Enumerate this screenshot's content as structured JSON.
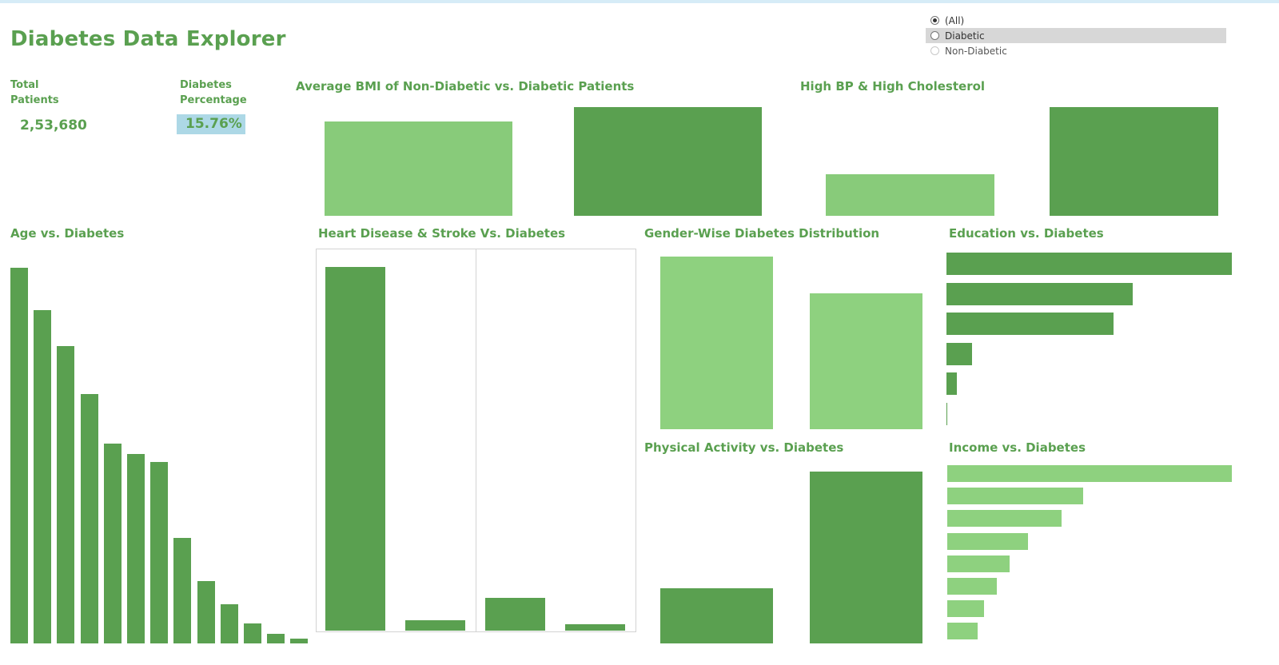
{
  "dashboard": {
    "title": "Diabetes Data Explorer",
    "kpis": {
      "total_patients_label_1": "Total",
      "total_patients_label_2": "Patients",
      "total_patients_value": "2,53,680",
      "diabetes_pct_label_1": "Diabetes",
      "diabetes_pct_label_2": "Percentage",
      "diabetes_pct_value": "15.76%"
    },
    "filter": {
      "options": [
        {
          "label": "(All)",
          "checked": true
        },
        {
          "label": "Diabetic",
          "checked": false
        },
        {
          "label": "Non-Diabetic",
          "checked": false
        }
      ]
    },
    "colors": {
      "dark_green": "#5aa050",
      "light_green": "#88cb7a",
      "highlight": "#add8e6",
      "frame": "#d3d3d3"
    }
  },
  "chart_data": [
    {
      "name": "bmi",
      "type": "bar",
      "title": "Average BMI of Non-Diabetic vs. Diabetic Patients",
      "values": [
        27.8,
        31.9
      ],
      "colors": [
        "light",
        "dark"
      ]
    },
    {
      "name": "bp_chol",
      "type": "bar",
      "title": "High BP & High Cholesterol",
      "values": [
        38,
        100
      ],
      "colors": [
        "light",
        "dark"
      ]
    },
    {
      "name": "age",
      "type": "bar",
      "title": "Age vs. Diabetes",
      "values": [
        100,
        88.7,
        79.1,
        66.3,
        53.1,
        50.5,
        48.3,
        28.1,
        16.6,
        10.4,
        5.3,
        2.5,
        1.3
      ]
    },
    {
      "name": "heart_stroke",
      "type": "bar",
      "title": "Heart Disease & Stroke Vs. Diabetes",
      "panels": [
        {
          "values": [
            100,
            2.8
          ]
        },
        {
          "values": [
            9.1,
            1.7
          ]
        }
      ]
    },
    {
      "name": "gender",
      "type": "bar",
      "title": "Gender-Wise Diabetes Distribution",
      "values": [
        100,
        78.7
      ]
    },
    {
      "name": "physical",
      "type": "bar",
      "title": "Physical Activity vs. Diabetes",
      "values": [
        32.2,
        100
      ]
    },
    {
      "name": "education",
      "type": "barh",
      "title": "Education vs. Diabetes",
      "values": [
        100,
        65.3,
        58.5,
        9.0,
        3.6,
        0.3
      ]
    },
    {
      "name": "income",
      "type": "barh",
      "title": "Income vs. Diabetes",
      "values": [
        100,
        47.7,
        40.2,
        28.4,
        22.0,
        17.4,
        13.0,
        10.6
      ]
    }
  ]
}
